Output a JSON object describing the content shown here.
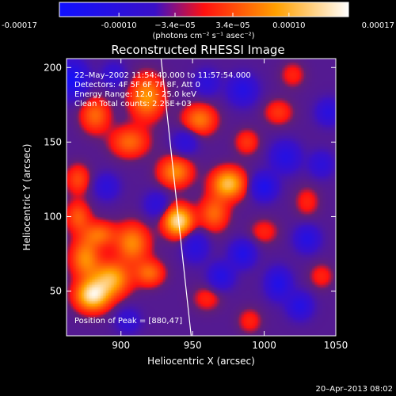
{
  "chart_data": {
    "type": "heatmap",
    "title": "Reconstructed RHESSI Image",
    "xlabel": "Heliocentric X (arcsec)",
    "ylabel": "Heliocentric Y (arcsec)",
    "xlim": [
      862,
      1050
    ],
    "ylim": [
      20,
      206
    ],
    "x_ticks": [
      900,
      950,
      1000,
      1050
    ],
    "y_ticks": [
      50,
      100,
      150,
      200
    ],
    "colorbar": {
      "range": [
        -0.00017,
        0.00017
      ],
      "tick_values": [
        -0.00017,
        -0.0001,
        -3.4e-05,
        3.4e-05,
        0.0001,
        0.00017
      ],
      "tick_labels": [
        "-0.00017",
        "-0.00010",
        "−3.4e−05",
        "3.4e−05",
        "0.00010",
        "0.00017"
      ],
      "unit_label": "(photons cm⁻² s⁻¹ asec⁻²)",
      "colors": [
        "#1010ff",
        "#ff1010",
        "#ffa000",
        "#ffffff"
      ]
    },
    "info_lines": [
      "22–May–2002 11:54:40.000 to 11:57:54.000",
      "Detectors: 4F 5F 6F 7F 8F, Att 0",
      "Energy Range: 12.0 – 25.0 keV",
      "Clean     Total counts: 2.26E+03"
    ],
    "peak_label": "Position of Peak = [880,47]",
    "footer_timestamp": "20–Apr–2013 08:02",
    "limb_line": {
      "x": [
        928,
        949
      ],
      "y": [
        206,
        20
      ]
    },
    "blobs": [
      {
        "x": 880,
        "y": 47,
        "value": 0.00017,
        "sx": 8,
        "sy": 7
      },
      {
        "x": 893,
        "y": 58,
        "value": 0.00013,
        "sx": 9,
        "sy": 8
      },
      {
        "x": 875,
        "y": 72,
        "value": 0.0001,
        "sx": 7,
        "sy": 9
      },
      {
        "x": 885,
        "y": 88,
        "value": 8e-05,
        "sx": 8,
        "sy": 6
      },
      {
        "x": 870,
        "y": 100,
        "value": 7e-05,
        "sx": 6,
        "sy": 7
      },
      {
        "x": 908,
        "y": 82,
        "value": 0.0001,
        "sx": 8,
        "sy": 9
      },
      {
        "x": 920,
        "y": 62,
        "value": 8e-05,
        "sx": 7,
        "sy": 6
      },
      {
        "x": 940,
        "y": 97,
        "value": 0.00017,
        "sx": 7,
        "sy": 7
      },
      {
        "x": 938,
        "y": 130,
        "value": 0.0001,
        "sx": 8,
        "sy": 7
      },
      {
        "x": 975,
        "y": 122,
        "value": 0.00014,
        "sx": 8,
        "sy": 7
      },
      {
        "x": 965,
        "y": 102,
        "value": 8e-05,
        "sx": 7,
        "sy": 8
      },
      {
        "x": 918,
        "y": 180,
        "value": 0.00011,
        "sx": 8,
        "sy": 10
      },
      {
        "x": 906,
        "y": 150,
        "value": 8e-05,
        "sx": 9,
        "sy": 7
      },
      {
        "x": 882,
        "y": 168,
        "value": 8e-05,
        "sx": 7,
        "sy": 8
      },
      {
        "x": 870,
        "y": 125,
        "value": 6e-05,
        "sx": 6,
        "sy": 7
      },
      {
        "x": 955,
        "y": 165,
        "value": 9e-05,
        "sx": 8,
        "sy": 7
      },
      {
        "x": 988,
        "y": 150,
        "value": 5e-05,
        "sx": 6,
        "sy": 6
      },
      {
        "x": 1010,
        "y": 170,
        "value": 5e-05,
        "sx": 7,
        "sy": 6
      },
      {
        "x": 1030,
        "y": 110,
        "value": 4e-05,
        "sx": 6,
        "sy": 7
      },
      {
        "x": 1000,
        "y": 90,
        "value": 4e-05,
        "sx": 7,
        "sy": 6
      },
      {
        "x": 1040,
        "y": 60,
        "value": 4e-05,
        "sx": 6,
        "sy": 6
      },
      {
        "x": 960,
        "y": 45,
        "value": 4e-05,
        "sx": 7,
        "sy": 6
      },
      {
        "x": 990,
        "y": 30,
        "value": 4e-05,
        "sx": 6,
        "sy": 6
      },
      {
        "x": 1020,
        "y": 195,
        "value": 4e-05,
        "sx": 6,
        "sy": 6
      },
      {
        "x": 866,
        "y": 192,
        "value": -0.00012,
        "sx": 7,
        "sy": 8
      },
      {
        "x": 890,
        "y": 120,
        "value": -6e-05,
        "sx": 6,
        "sy": 6
      },
      {
        "x": 925,
        "y": 108,
        "value": -6e-05,
        "sx": 6,
        "sy": 6
      },
      {
        "x": 952,
        "y": 80,
        "value": -7e-05,
        "sx": 6,
        "sy": 7
      },
      {
        "x": 985,
        "y": 185,
        "value": -8e-05,
        "sx": 7,
        "sy": 7
      },
      {
        "x": 1000,
        "y": 120,
        "value": -0.0001,
        "sx": 6,
        "sy": 6
      },
      {
        "x": 1015,
        "y": 140,
        "value": -8e-05,
        "sx": 7,
        "sy": 7
      },
      {
        "x": 985,
        "y": 75,
        "value": -9e-05,
        "sx": 6,
        "sy": 6
      },
      {
        "x": 1030,
        "y": 85,
        "value": -8e-05,
        "sx": 6,
        "sy": 6
      },
      {
        "x": 1025,
        "y": 40,
        "value": -8e-05,
        "sx": 6,
        "sy": 6
      },
      {
        "x": 1010,
        "y": 55,
        "value": -9e-05,
        "sx": 6,
        "sy": 7
      },
      {
        "x": 970,
        "y": 60,
        "value": -8e-05,
        "sx": 6,
        "sy": 6
      },
      {
        "x": 1045,
        "y": 170,
        "value": -7e-05,
        "sx": 6,
        "sy": 6
      },
      {
        "x": 960,
        "y": 190,
        "value": -6e-05,
        "sx": 6,
        "sy": 6
      },
      {
        "x": 895,
        "y": 195,
        "value": -5e-05,
        "sx": 6,
        "sy": 6
      },
      {
        "x": 945,
        "y": 150,
        "value": -6e-05,
        "sx": 6,
        "sy": 6
      },
      {
        "x": 905,
        "y": 30,
        "value": -5e-05,
        "sx": 6,
        "sy": 6
      },
      {
        "x": 1040,
        "y": 135,
        "value": -6e-05,
        "sx": 6,
        "sy": 6
      }
    ]
  }
}
